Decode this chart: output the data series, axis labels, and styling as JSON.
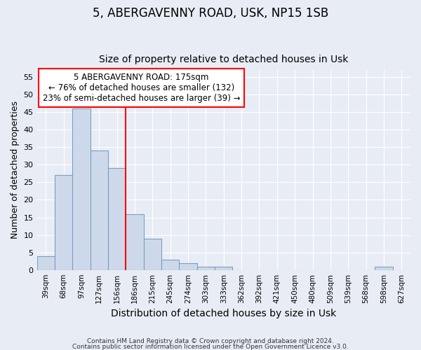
{
  "title1": "5, ABERGAVENNY ROAD, USK, NP15 1SB",
  "title2": "Size of property relative to detached houses in Usk",
  "xlabel": "Distribution of detached houses by size in Usk",
  "ylabel": "Number of detached properties",
  "categories": [
    "39sqm",
    "68sqm",
    "97sqm",
    "127sqm",
    "156sqm",
    "186sqm",
    "215sqm",
    "245sqm",
    "274sqm",
    "303sqm",
    "333sqm",
    "362sqm",
    "392sqm",
    "421sqm",
    "450sqm",
    "480sqm",
    "509sqm",
    "539sqm",
    "568sqm",
    "598sqm",
    "627sqm"
  ],
  "values": [
    4,
    27,
    46,
    34,
    29,
    16,
    9,
    3,
    2,
    1,
    1,
    0,
    0,
    0,
    0,
    0,
    0,
    0,
    0,
    1,
    0
  ],
  "bar_color": "#cdd9ea",
  "bar_edge_color": "#7a9fc2",
  "annotation_lines": [
    "5 ABERGAVENNY ROAD: 175sqm",
    "← 76% of detached houses are smaller (132)",
    "23% of semi-detached houses are larger (39) →"
  ],
  "annotation_box_color": "red",
  "vline_color": "red",
  "vline_x_index": 5.0,
  "ylim": [
    0,
    57
  ],
  "yticks": [
    0,
    5,
    10,
    15,
    20,
    25,
    30,
    35,
    40,
    45,
    50,
    55
  ],
  "footnote1": "Contains HM Land Registry data © Crown copyright and database right 2024.",
  "footnote2": "Contains public sector information licensed under the Open Government Licence v3.0.",
  "background_color": "#e8edf5",
  "plot_bg_color": "#e8edf5",
  "grid_color": "white",
  "title1_fontsize": 12,
  "title2_fontsize": 10,
  "xlabel_fontsize": 10,
  "ylabel_fontsize": 9
}
